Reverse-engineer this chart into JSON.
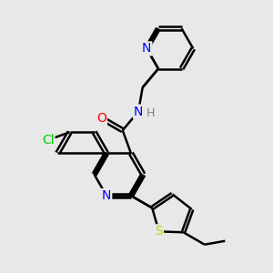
{
  "bg_color": "#e8e8e8",
  "bond_color": "#000000",
  "bond_width": 1.8,
  "atom_colors": {
    "N": "#0000ff",
    "O": "#ff0000",
    "S": "#cccc00",
    "Cl": "#00cc00",
    "H": "#808080",
    "C": "#000000"
  },
  "font_size": 10
}
